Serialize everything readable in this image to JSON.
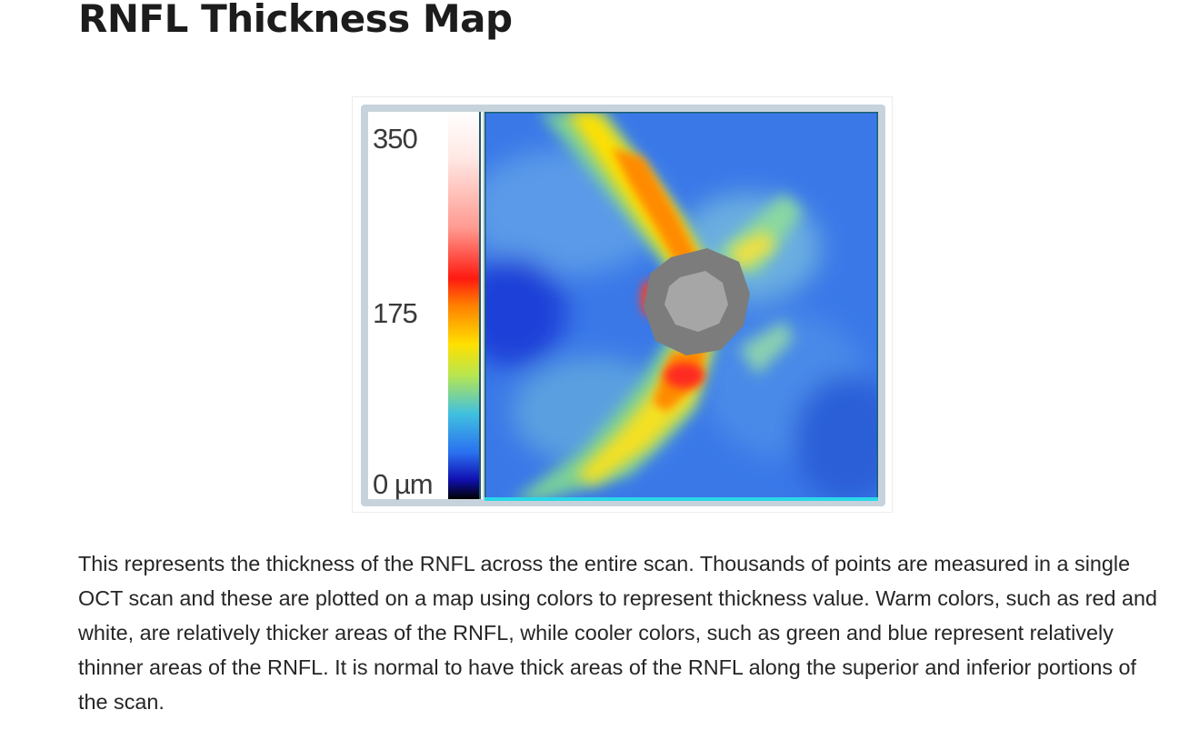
{
  "page": {
    "title": "RNFL Thickness Map"
  },
  "figure": {
    "scale": {
      "max_label": "350",
      "mid_label": "175",
      "min_label": "0 µm",
      "max_value": 350,
      "mid_value": 175,
      "min_value": 0,
      "unit": "µm",
      "colors_top_to_bottom": [
        "#ffffff",
        "#ffb0a8",
        "#ff2a1a",
        "#ff8c00",
        "#ffee00",
        "#9be05a",
        "#37b8e8",
        "#2a6ef0",
        "#1010c0",
        "#000000"
      ]
    },
    "map": {
      "optic_disc_rim_color": "#7c7c7c",
      "optic_cup_color": "#a6a6a6",
      "background_color": "#3a78e8"
    }
  },
  "description": "This represents the thickness of the RNFL across the entire scan. Thousands of points are measured in a single OCT scan and these are plotted on a map using colors to represent thickness value. Warm colors, such as red and white, are relatively thicker areas of the RNFL, while cooler colors, such as green and blue represent relatively thinner areas of the RNFL. It is normal to have thick areas of the RNFL along the superior and inferior portions of the scan."
}
